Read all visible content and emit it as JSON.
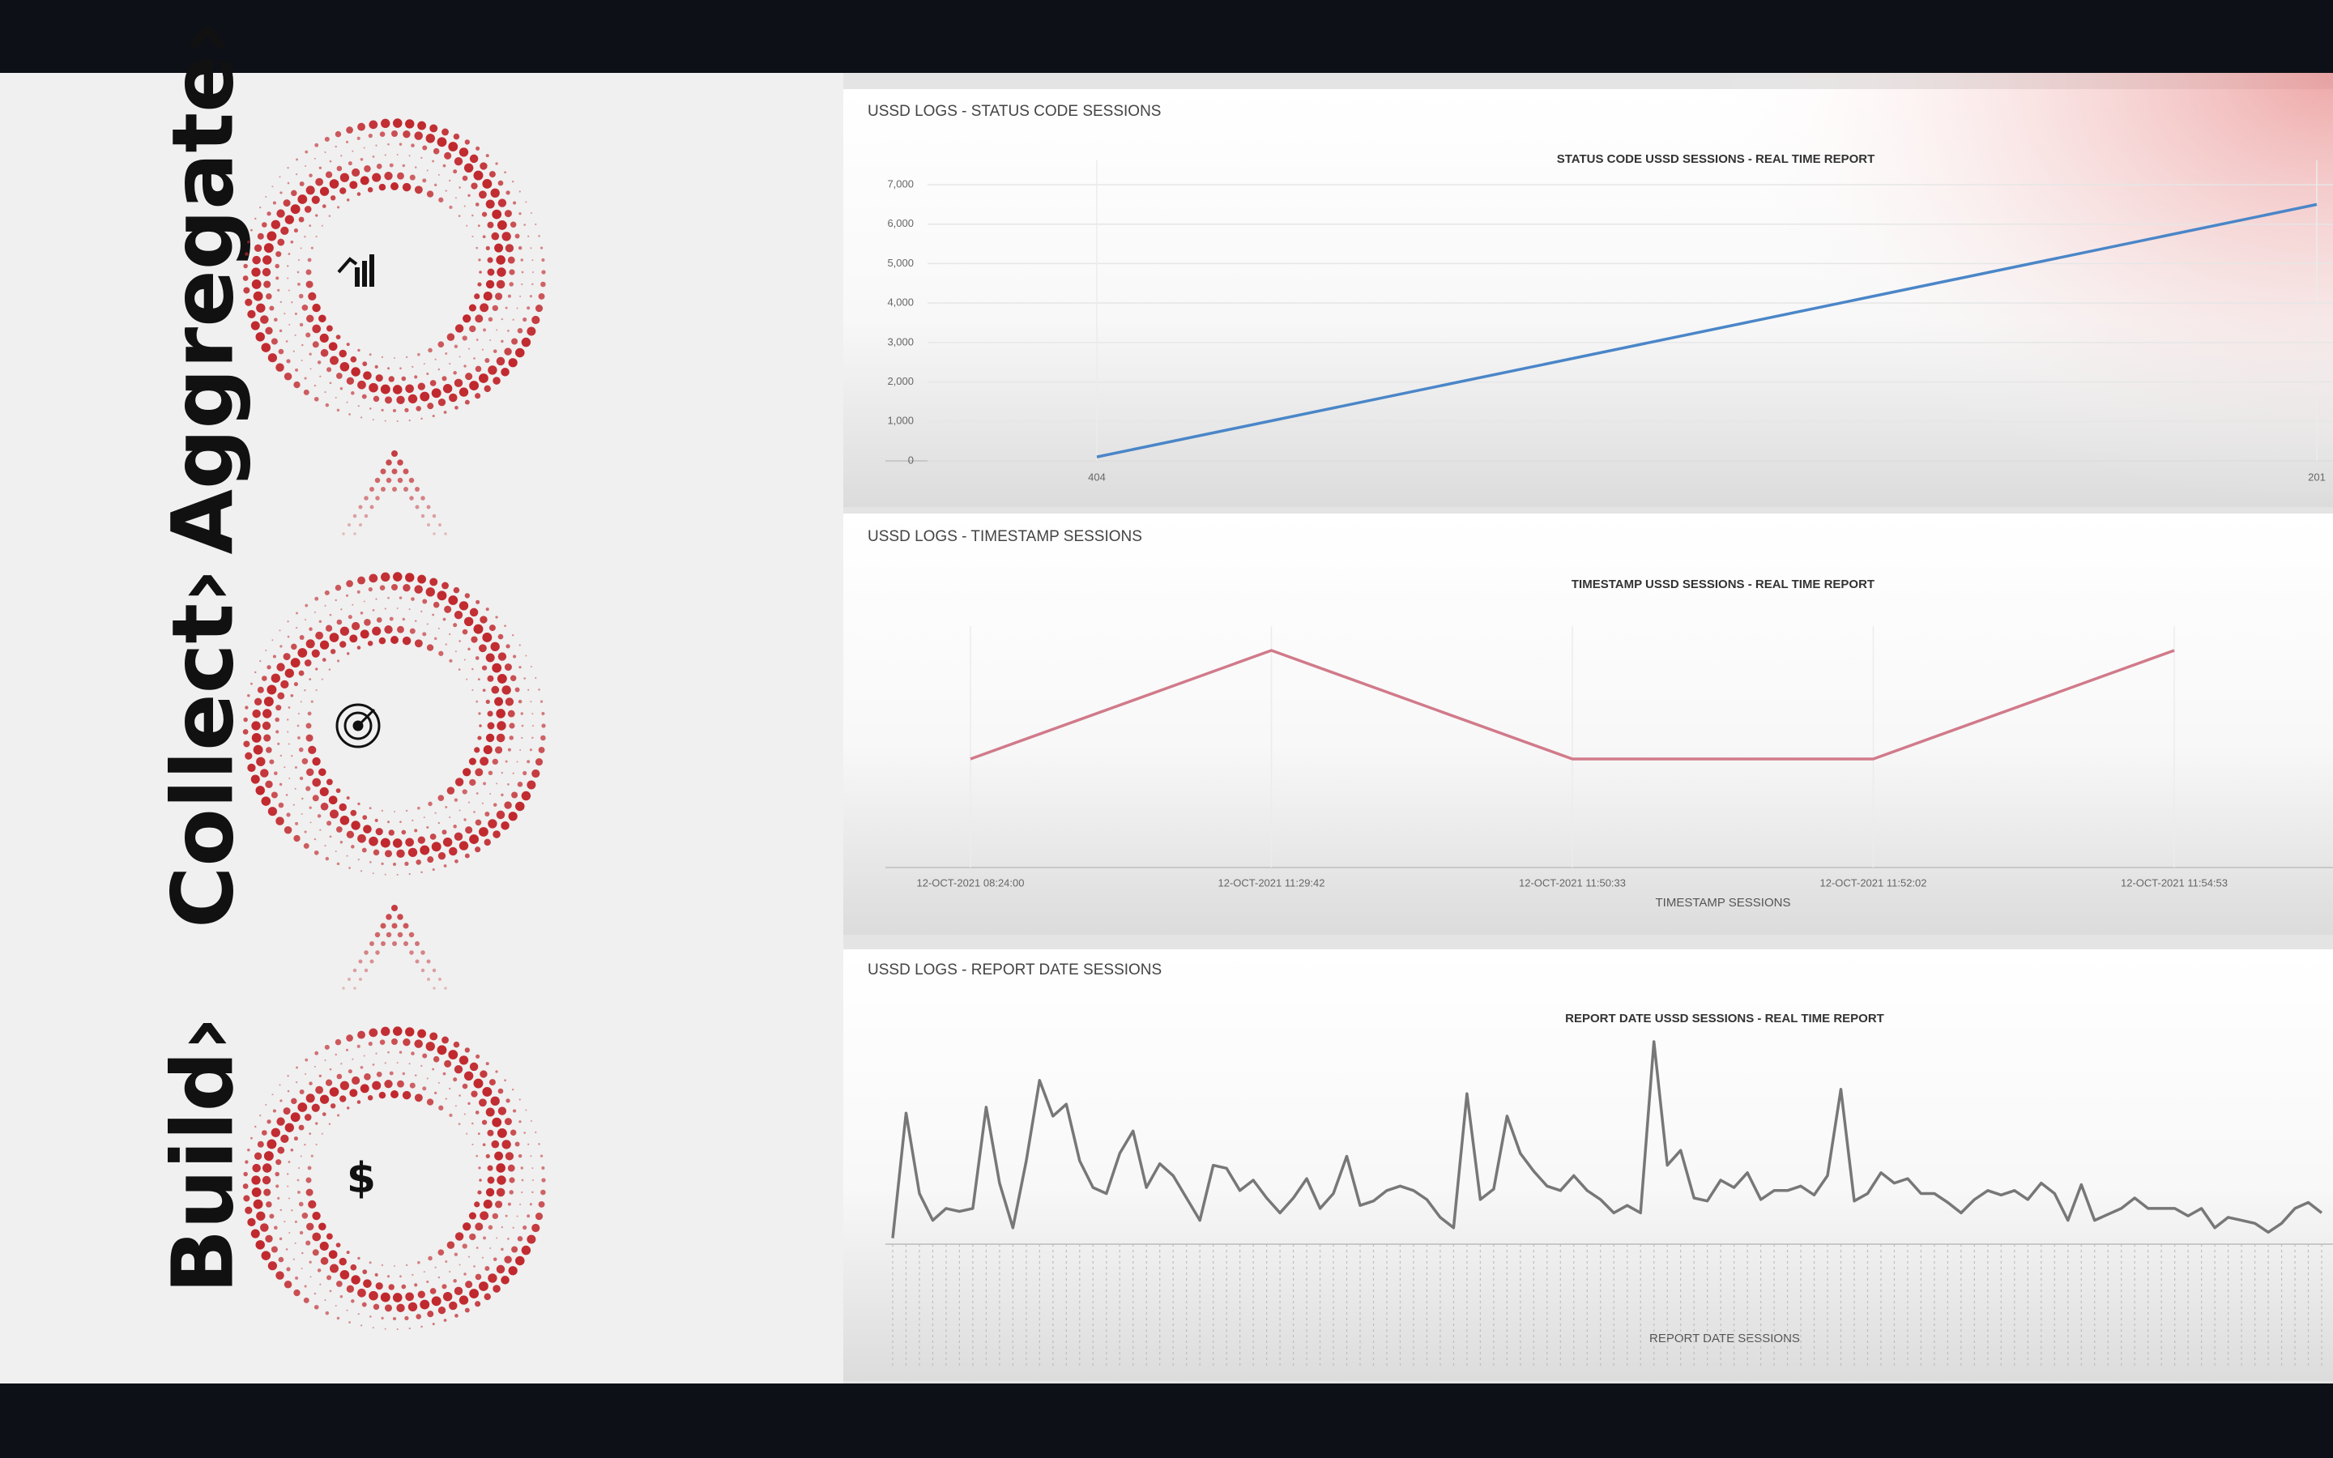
{
  "sidebar": {
    "steps": [
      "Aggregate›",
      "Collect›",
      "Build›"
    ]
  },
  "chart_data": [
    {
      "type": "line",
      "panel_title": "USSD LOGS - STATUS CODE SESSIONS",
      "title": "STATUS CODE USSD SESSIONS - REAL TIME REPORT",
      "categories": [
        "404",
        "201"
      ],
      "values": [
        100,
        6500
      ],
      "color": "#4a86c8",
      "ylim": [
        0,
        7000
      ],
      "yticks": [
        0,
        {
          "value": 1000,
          "label": "1,000"
        },
        {
          "value": 2000,
          "label": "2,000"
        },
        {
          "value": 3000,
          "label": "3,000"
        },
        {
          "value": 4000,
          "label": "4,000"
        },
        {
          "value": 5000,
          "label": "5,000"
        },
        {
          "value": 6000,
          "label": "6,000"
        },
        {
          "value": 7000,
          "label": "7,000"
        }
      ],
      "grid": true
    },
    {
      "type": "line",
      "panel_title": "USSD LOGS - TIMESTAMP SESSIONS",
      "title": "TIMESTAMP USSD SESSIONS - REAL TIME REPORT",
      "x_label": "TIMESTAMP SESSIONS",
      "categories": [
        "12-OCT-2021 08:24:00",
        "12-OCT-2021 11:29:42",
        "12-OCT-2021 11:50:33",
        "12-OCT-2021 11:52:02",
        "12-OCT-2021 11:54:53"
      ],
      "values": [
        1,
        2,
        1,
        1,
        2
      ],
      "color": "#d17a8a"
    },
    {
      "type": "line",
      "panel_title": "USSD LOGS - REPORT DATE SESSIONS",
      "title": "REPORT DATE USSD SESSIONS - REAL TIME REPORT",
      "x_label": "REPORT DATE SESSIONS",
      "categories": [
        null,
        null,
        null,
        null,
        null,
        null,
        null,
        null,
        null,
        null,
        null,
        null,
        null,
        null,
        null,
        null,
        null,
        null,
        null,
        null,
        null,
        null,
        null,
        null,
        null,
        null,
        null,
        null,
        null,
        null,
        null,
        null,
        null,
        null,
        null,
        null,
        null,
        null,
        null,
        null,
        null,
        null,
        null,
        null,
        null,
        null,
        null,
        null,
        null,
        null,
        null,
        null,
        null,
        null,
        null,
        null,
        null,
        null,
        null,
        null,
        null,
        null,
        null,
        null,
        null,
        null,
        null,
        null,
        null,
        null,
        null,
        null,
        null,
        null,
        null,
        null,
        null,
        null,
        null,
        null,
        null,
        null,
        null,
        null,
        null,
        null,
        null,
        null,
        null,
        null,
        null,
        null,
        null,
        null,
        null,
        null,
        null,
        null,
        null,
        null,
        null,
        null,
        null,
        null,
        null,
        null,
        null,
        null
      ],
      "values": [
        4,
        88,
        34,
        16,
        24,
        22,
        24,
        92,
        41,
        11,
        56,
        110,
        86,
        94,
        56,
        38,
        34,
        61,
        76,
        38,
        54,
        46,
        31,
        16,
        53,
        51,
        36,
        43,
        31,
        21,
        31,
        44,
        24,
        34,
        59,
        26,
        29,
        36,
        39,
        36,
        30,
        18,
        11,
        101,
        30,
        37,
        86,
        61,
        49,
        39,
        36,
        46,
        36,
        30,
        21,
        26,
        21,
        136,
        53,
        63,
        31,
        29,
        43,
        38,
        48,
        30,
        36,
        36,
        39,
        33,
        46,
        104,
        29,
        34,
        48,
        41,
        44,
        34,
        34,
        28,
        21,
        30,
        36,
        33,
        36,
        30,
        41,
        34,
        16,
        40,
        16,
        20,
        24,
        31,
        24,
        24,
        24,
        19,
        24,
        11,
        18,
        16,
        14,
        8,
        14,
        24,
        28,
        21
      ],
      "color": "#777777"
    }
  ]
}
